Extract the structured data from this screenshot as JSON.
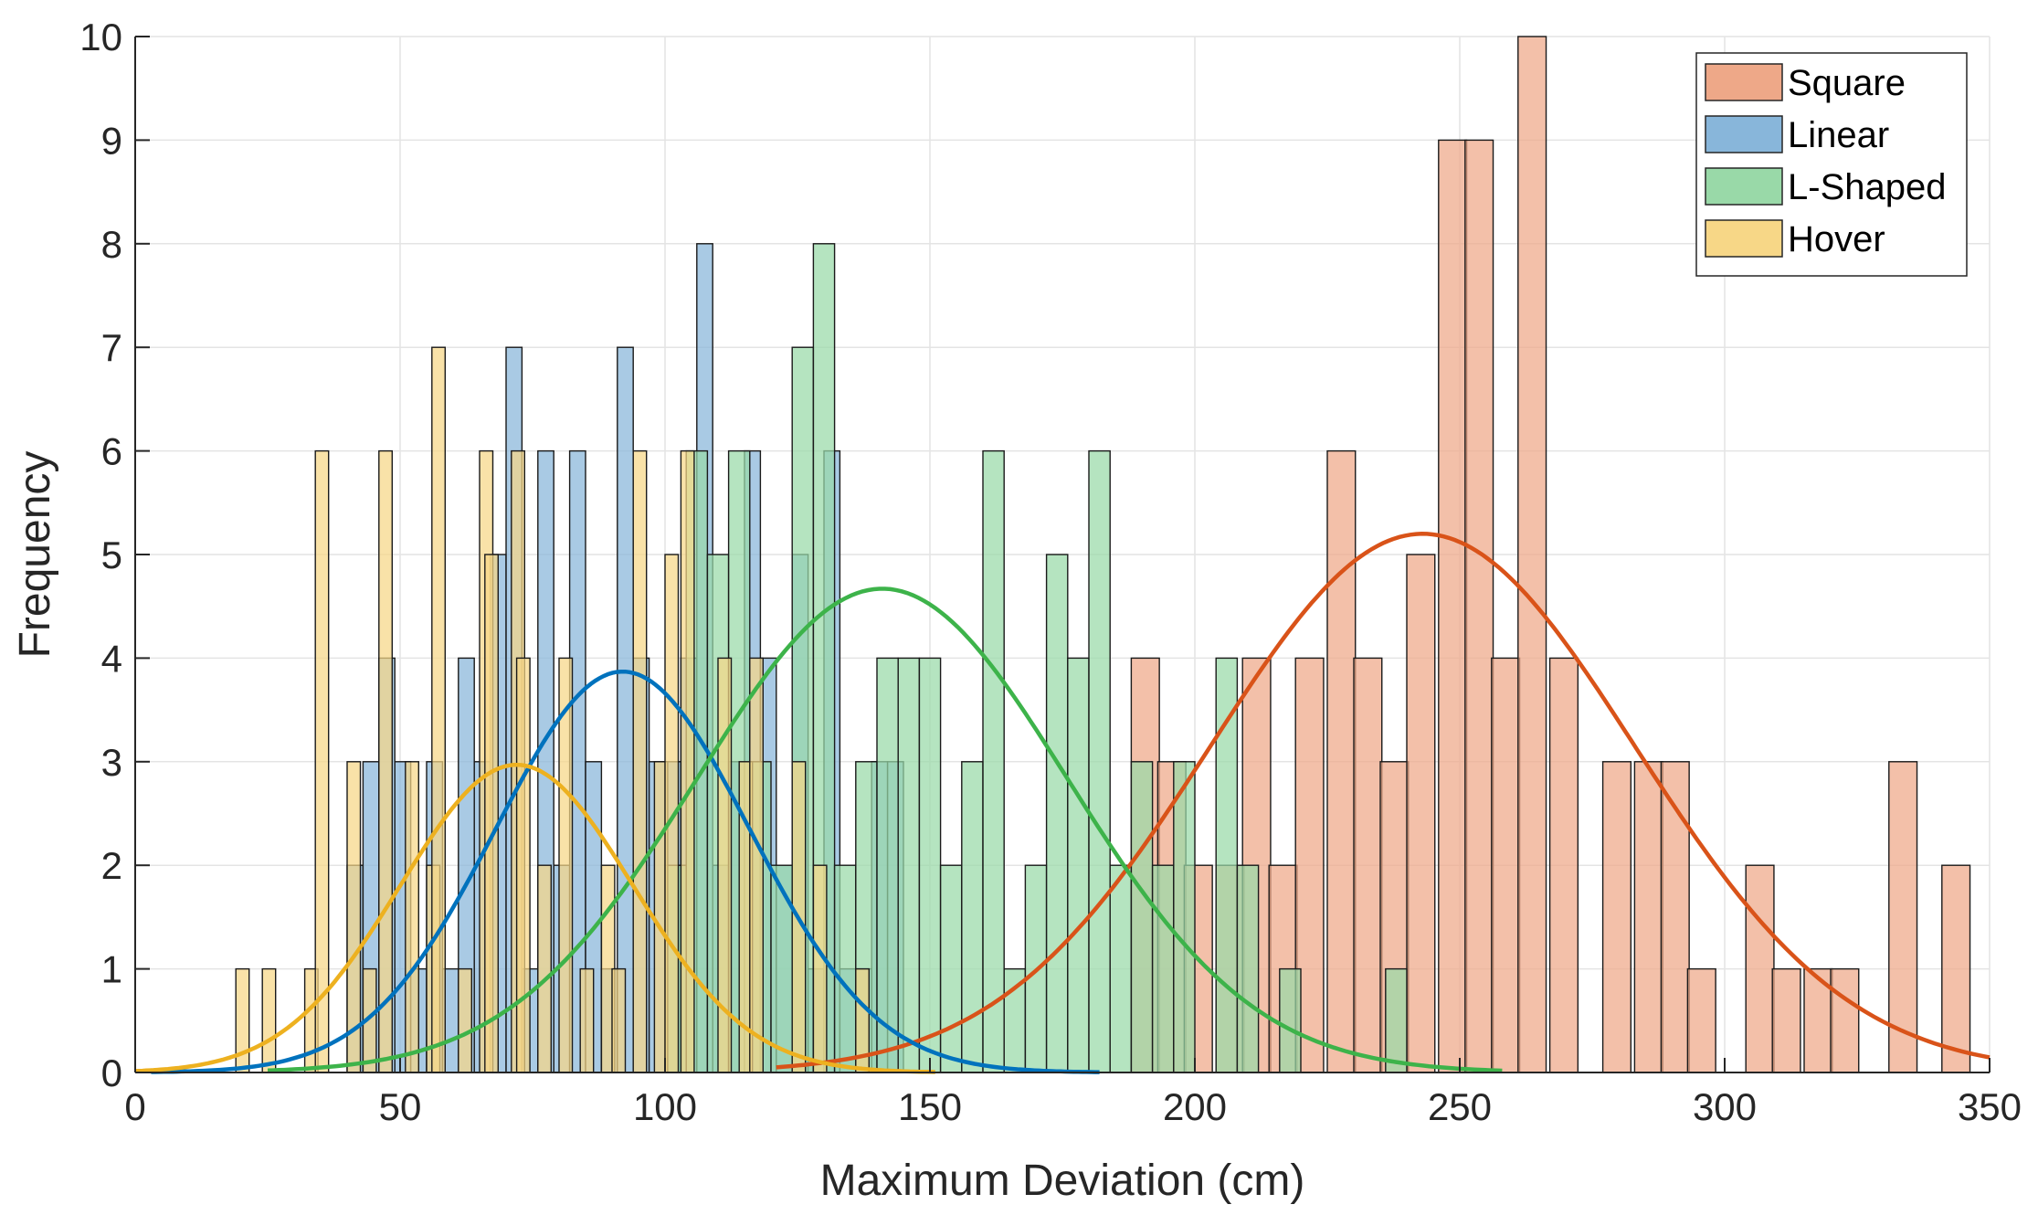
{
  "chart_data": {
    "type": "histogram",
    "xlabel": "Maximum Deviation (cm)",
    "ylabel": "Frequency",
    "xlim": [
      0,
      350
    ],
    "ylim": [
      0,
      10
    ],
    "xticks": [
      0,
      50,
      100,
      150,
      200,
      250,
      300,
      350
    ],
    "yticks": [
      0,
      1,
      2,
      3,
      4,
      5,
      6,
      7,
      8,
      9,
      10
    ],
    "grid": true,
    "legend_position": "top-right",
    "series": [
      {
        "name": "Square",
        "color": "#D95319",
        "fill": "#EEA888",
        "bin_width": 5.3,
        "bins": [
          [
            188,
            4
          ],
          [
            193,
            3
          ],
          [
            198,
            2
          ],
          [
            204,
            2
          ],
          [
            209,
            4
          ],
          [
            214,
            2
          ],
          [
            219,
            4
          ],
          [
            225,
            6
          ],
          [
            230,
            4
          ],
          [
            235,
            3
          ],
          [
            240,
            5
          ],
          [
            246,
            9
          ],
          [
            251,
            9
          ],
          [
            256,
            4
          ],
          [
            261,
            10
          ],
          [
            267,
            4
          ],
          [
            272,
            0
          ],
          [
            277,
            3
          ],
          [
            283,
            3
          ],
          [
            288,
            3
          ],
          [
            293,
            1
          ],
          [
            299,
            0
          ],
          [
            304,
            2
          ],
          [
            309,
            1
          ],
          [
            315,
            1
          ],
          [
            320,
            1
          ],
          [
            325,
            0
          ],
          [
            331,
            3
          ],
          [
            336,
            0
          ],
          [
            341,
            2
          ]
        ],
        "fit": {
          "mean": 243,
          "sd": 40,
          "peak": 5.2,
          "range": [
            121,
            350
          ]
        }
      },
      {
        "name": "Linear",
        "color": "#0072BD",
        "fill": "#88B6DA",
        "bin_width": 3.0,
        "bins": [
          [
            40,
            2
          ],
          [
            43,
            3
          ],
          [
            46,
            4
          ],
          [
            49,
            3
          ],
          [
            52,
            1
          ],
          [
            55,
            3
          ],
          [
            58,
            1
          ],
          [
            61,
            4
          ],
          [
            64,
            3
          ],
          [
            67,
            5
          ],
          [
            70,
            7
          ],
          [
            73,
            1
          ],
          [
            76,
            6
          ],
          [
            79,
            2
          ],
          [
            82,
            6
          ],
          [
            85,
            3
          ],
          [
            88,
            1
          ],
          [
            91,
            7
          ],
          [
            94,
            4
          ],
          [
            97,
            3
          ],
          [
            100,
            3
          ],
          [
            103,
            4
          ],
          [
            106,
            8
          ],
          [
            109,
            2
          ],
          [
            112,
            3
          ],
          [
            115,
            6
          ],
          [
            118,
            4
          ],
          [
            121,
            2
          ],
          [
            124,
            5
          ],
          [
            127,
            1
          ],
          [
            130,
            6
          ],
          [
            133,
            1
          ],
          [
            136,
            1
          ],
          [
            139,
            3
          ],
          [
            142,
            3
          ]
        ],
        "fit": {
          "mean": 92,
          "sd": 24,
          "peak": 3.87,
          "range": [
            3,
            182
          ]
        }
      },
      {
        "name": "L-Shaped",
        "color": "#3DB34A",
        "fill": "#99D9A8",
        "bin_width": 4.0,
        "bins": [
          [
            100,
            2
          ],
          [
            104,
            6
          ],
          [
            108,
            5
          ],
          [
            112,
            6
          ],
          [
            116,
            3
          ],
          [
            120,
            2
          ],
          [
            124,
            7
          ],
          [
            128,
            8
          ],
          [
            132,
            2
          ],
          [
            136,
            3
          ],
          [
            140,
            4
          ],
          [
            144,
            4
          ],
          [
            148,
            4
          ],
          [
            152,
            2
          ],
          [
            156,
            3
          ],
          [
            160,
            6
          ],
          [
            164,
            1
          ],
          [
            168,
            2
          ],
          [
            172,
            5
          ],
          [
            176,
            4
          ],
          [
            180,
            6
          ],
          [
            184,
            2
          ],
          [
            188,
            3
          ],
          [
            192,
            2
          ],
          [
            196,
            3
          ],
          [
            200,
            0
          ],
          [
            204,
            4
          ],
          [
            208,
            2
          ],
          [
            212,
            0
          ],
          [
            216,
            1
          ],
          [
            220,
            0
          ],
          [
            224,
            0
          ],
          [
            228,
            0
          ],
          [
            232,
            0
          ],
          [
            236,
            1
          ]
        ],
        "fit": {
          "mean": 141,
          "sd": 35,
          "peak": 4.67,
          "range": [
            25,
            258
          ]
        }
      },
      {
        "name": "Hover",
        "color": "#EDB120",
        "fill": "#F7D787",
        "bin_width": 2.5,
        "bins": [
          [
            19,
            1
          ],
          [
            24,
            1
          ],
          [
            32,
            1
          ],
          [
            34,
            6
          ],
          [
            40,
            3
          ],
          [
            43,
            1
          ],
          [
            46,
            6
          ],
          [
            51,
            3
          ],
          [
            55,
            2
          ],
          [
            56,
            7
          ],
          [
            61,
            1
          ],
          [
            65,
            6
          ],
          [
            66,
            5
          ],
          [
            71,
            6
          ],
          [
            72,
            4
          ],
          [
            76,
            2
          ],
          [
            80,
            4
          ],
          [
            84,
            1
          ],
          [
            88,
            2
          ],
          [
            90,
            1
          ],
          [
            94,
            6
          ],
          [
            98,
            3
          ],
          [
            100,
            5
          ],
          [
            103,
            6
          ],
          [
            110,
            4
          ],
          [
            114,
            3
          ],
          [
            116,
            4
          ],
          [
            124,
            3
          ],
          [
            128,
            2
          ],
          [
            136,
            1
          ]
        ],
        "fit": {
          "mean": 72,
          "sd": 22,
          "peak": 2.97,
          "range": [
            0,
            151
          ]
        }
      }
    ]
  }
}
